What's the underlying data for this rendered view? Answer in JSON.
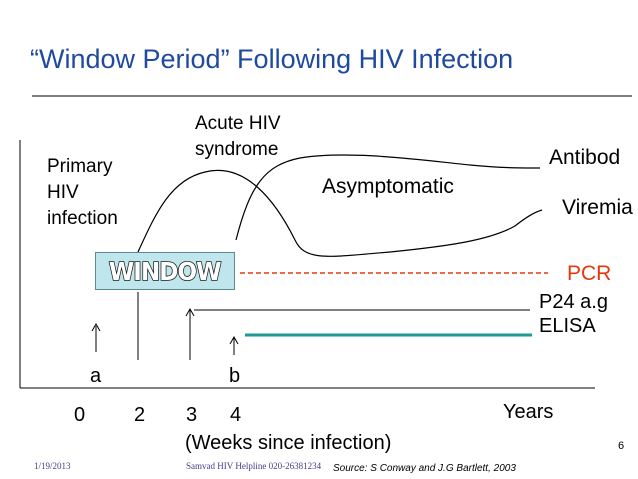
{
  "title": "“Window Period” Following HIV Infection",
  "labels": {
    "primary": [
      "Primary",
      "HIV",
      "infection"
    ],
    "acute": [
      "Acute HIV",
      "syndrome"
    ],
    "asymptomatic": "Asymptomatic",
    "antibody": "Antibod",
    "viremia": "Viremia",
    "window": "WINDOW",
    "pcr": "PCR",
    "p24": "P24 a.g",
    "elisa": "ELISA",
    "marker_a": "a",
    "marker_b": "b",
    "ticks": [
      "0",
      "2",
      "3",
      "4"
    ],
    "years": "Years",
    "weeks": "(Weeks since infection)"
  },
  "footer": {
    "date": "1/19/2013",
    "helpline": "Samvad HIV Helpline 020-26381234",
    "source": "Source: S Conway and J.G Bartlett, 2003",
    "page_number": "6"
  },
  "colors": {
    "title": "#1f4aa0",
    "pcr": "#e8360e",
    "elisa": "#1f9a94",
    "window_box": "#bfe6ec"
  }
}
